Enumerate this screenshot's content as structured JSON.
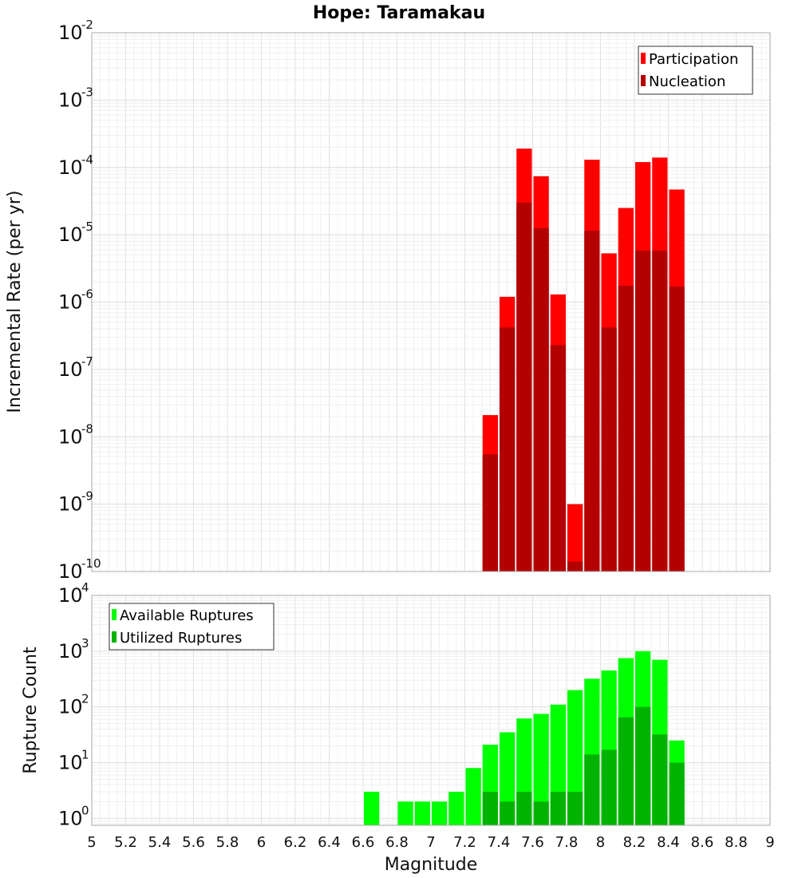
{
  "chart_data": [
    {
      "type": "bar",
      "title": "Hope: Taramakau",
      "xlabel": "",
      "ylabel": "Incremental Rate (per yr)",
      "yscale": "log",
      "ylim": [
        1e-10,
        0.01
      ],
      "xlim": [
        5,
        9
      ],
      "bar_width": 0.1,
      "grid": true,
      "legend_position": "top-right",
      "ytick_exponents": [
        "-10",
        "-9",
        "-8",
        "-7",
        "-6",
        "-5",
        "-4",
        "-3",
        "-2"
      ],
      "x": [
        7.35,
        7.45,
        7.55,
        7.65,
        7.75,
        7.85,
        7.95,
        8.05,
        8.15,
        8.25,
        8.35,
        8.45
      ],
      "series": [
        {
          "name": "Participation",
          "color": "#ff0000",
          "values": [
            2.1e-08,
            1.2e-06,
            0.00019,
            7.4e-05,
            1.3e-06,
            1e-09,
            0.00013,
            5.3e-06,
            2.5e-05,
            0.00012,
            0.00014,
            4.7e-05
          ]
        },
        {
          "name": "Nucleation",
          "color": "#b30000",
          "values": [
            5.5e-09,
            4.2e-07,
            3e-05,
            1.25e-05,
            2.3e-07,
            1.4e-10,
            1.15e-05,
            4.2e-07,
            1.75e-06,
            5.8e-06,
            5.8e-06,
            1.7e-06
          ]
        }
      ]
    },
    {
      "type": "bar",
      "title": "",
      "xlabel": "Magnitude",
      "ylabel": "Rupture Count",
      "yscale": "log",
      "ylim": [
        0.75,
        10000
      ],
      "xlim": [
        5,
        9
      ],
      "bar_width": 0.1,
      "grid": true,
      "legend_position": "top-left",
      "ytick_exponents": [
        "0",
        "1",
        "2",
        "3",
        "4"
      ],
      "xtick_labels": [
        "5",
        "5.2",
        "5.4",
        "5.6",
        "5.8",
        "6",
        "6.2",
        "6.4",
        "6.6",
        "6.8",
        "7",
        "7.2",
        "7.4",
        "7.6",
        "7.8",
        "8",
        "8.2",
        "8.4",
        "8.6",
        "8.8",
        "9"
      ],
      "x": [
        6.65,
        6.85,
        6.95,
        7.05,
        7.15,
        7.25,
        7.35,
        7.45,
        7.55,
        7.65,
        7.75,
        7.85,
        7.95,
        8.05,
        8.15,
        8.25,
        8.35,
        8.45
      ],
      "series": [
        {
          "name": "Available Ruptures",
          "color": "#00ff00",
          "values": [
            3,
            2,
            2,
            2,
            3,
            8,
            21,
            35,
            62,
            75,
            110,
            200,
            320,
            450,
            750,
            1000,
            700,
            25
          ]
        },
        {
          "name": "Utilized Ruptures",
          "color": "#00b300",
          "values": [
            0,
            0,
            0,
            0,
            0,
            0,
            3,
            2,
            3,
            2,
            3,
            3,
            14,
            17,
            65,
            100,
            32,
            10
          ]
        }
      ]
    }
  ]
}
